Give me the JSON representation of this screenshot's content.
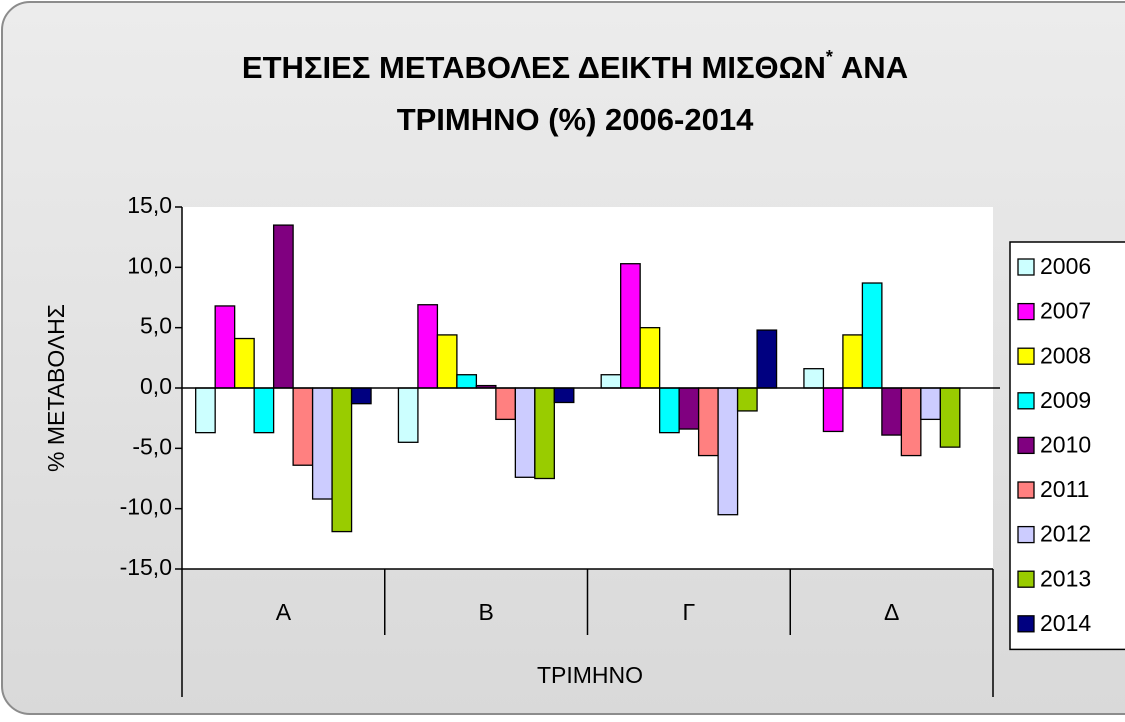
{
  "chart_data": {
    "type": "bar",
    "title_lines": [
      "ΕΤΗΣΙΕΣ ΜΕΤΑΒΟΛΕΣ ΔΕΙΚΤΗ ΜΙΣΘΩΝ",
      "ΑΝΑ",
      "ΤΡΙΜΗΝΟ (%) 2006-2014"
    ],
    "title_footnote_mark": "*",
    "x_label": "ΤΡΙΜΗΝΟ",
    "y_label": "% ΜΕΤΑΒΟΛΗΣ",
    "categories": [
      "Α",
      "Β",
      "Γ",
      "Δ"
    ],
    "ylim": [
      -15,
      15
    ],
    "yticks": [
      {
        "value": 15,
        "label": "15,0"
      },
      {
        "value": 10,
        "label": "10,0"
      },
      {
        "value": 5,
        "label": "5,0"
      },
      {
        "value": 0,
        "label": "0,0"
      },
      {
        "value": -5,
        "label": "-5,0"
      },
      {
        "value": -10,
        "label": "-10,0"
      },
      {
        "value": -15,
        "label": "-15,0"
      }
    ],
    "legend": "right",
    "series": [
      {
        "name": "2006",
        "color": "#ccffff",
        "values": [
          -3.7,
          -4.5,
          1.1,
          1.6
        ]
      },
      {
        "name": "2007",
        "color": "#ff00ff",
        "values": [
          6.8,
          6.9,
          10.3,
          -3.6
        ]
      },
      {
        "name": "2008",
        "color": "#ffff00",
        "values": [
          4.1,
          4.4,
          5.0,
          4.4
        ]
      },
      {
        "name": "2009",
        "color": "#00ffff",
        "values": [
          -3.7,
          1.1,
          -3.7,
          8.7
        ]
      },
      {
        "name": "2010",
        "color": "#800080",
        "values": [
          13.5,
          0.2,
          -3.4,
          -3.9
        ]
      },
      {
        "name": "2011",
        "color": "#ff8080",
        "values": [
          -6.4,
          -2.6,
          -5.6,
          -5.6
        ]
      },
      {
        "name": "2012",
        "color": "#ccccff",
        "values": [
          -9.2,
          -7.4,
          -10.5,
          -2.6
        ]
      },
      {
        "name": "2013",
        "color": "#99cc00",
        "values": [
          -11.9,
          -7.5,
          -1.9,
          -4.9
        ]
      },
      {
        "name": "2014",
        "color": "#000080",
        "values": [
          -1.3,
          -1.2,
          4.8,
          null
        ]
      }
    ]
  }
}
